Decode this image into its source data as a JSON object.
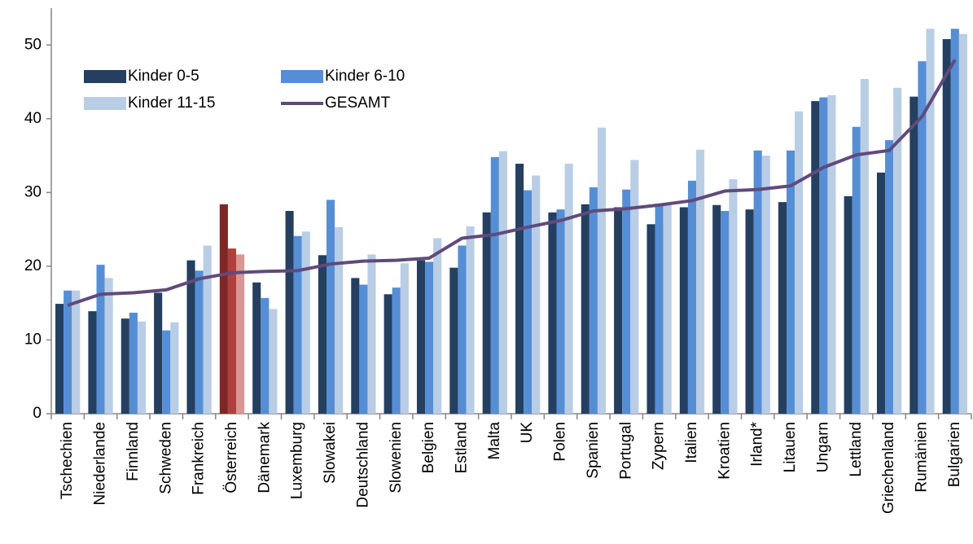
{
  "chart_data": {
    "type": "bar",
    "categories": [
      "Tschechien",
      "Niederlande",
      "Finnland",
      "Schweden",
      "Frankreich",
      "Österreich",
      "Dänemark",
      "Luxemburg",
      "Slowakei",
      "Deutschland",
      "Slowenien",
      "Belgien",
      "Estland",
      "Malta",
      "UK",
      "Polen",
      "Spanien",
      "Portugal",
      "Zypern",
      "Italien",
      "Kroatien",
      "Irland*",
      "Litauen",
      "Ungarn",
      "Lettland",
      "Griechenland",
      "Rumänien",
      "Bulgarien"
    ],
    "series": [
      {
        "name": "Kinder 0-5",
        "type": "bar",
        "color": "#243f60",
        "values": [
          14.9,
          13.9,
          12.9,
          16.4,
          20.8,
          28.4,
          17.8,
          27.5,
          21.5,
          18.4,
          16.2,
          20.8,
          19.8,
          27.3,
          33.9,
          27.3,
          28.4,
          28.0,
          25.7,
          28.0,
          28.3,
          27.7,
          28.7,
          42.4,
          29.5,
          32.7,
          43.0,
          50.8
        ]
      },
      {
        "name": "Kinder 6-10",
        "type": "bar",
        "color": "#558ed5",
        "values": [
          16.7,
          20.2,
          13.7,
          11.3,
          19.4,
          22.4,
          15.7,
          24.1,
          29.0,
          17.5,
          17.1,
          20.6,
          22.8,
          34.8,
          30.3,
          27.7,
          30.7,
          30.4,
          28.5,
          31.6,
          27.5,
          35.7,
          35.7,
          42.9,
          38.9,
          37.1,
          47.8,
          52.2
        ]
      },
      {
        "name": "Kinder 11-15",
        "type": "bar",
        "color": "#b9cde5",
        "values": [
          16.7,
          18.4,
          12.5,
          12.4,
          22.8,
          21.6,
          14.2,
          24.7,
          25.3,
          21.6,
          20.4,
          23.8,
          25.4,
          35.6,
          32.3,
          33.9,
          38.8,
          34.4,
          28.5,
          35.8,
          31.8,
          35.0,
          41.0,
          43.2,
          45.4,
          44.2,
          52.2,
          51.5
        ]
      },
      {
        "name": "GESAMT",
        "type": "line",
        "color": "#604a7b",
        "values": [
          14.7,
          16.2,
          16.4,
          16.8,
          18.3,
          19.1,
          19.3,
          19.4,
          20.3,
          20.7,
          20.8,
          21.1,
          23.8,
          24.3,
          25.3,
          26.2,
          27.5,
          27.8,
          28.3,
          28.9,
          30.2,
          30.4,
          30.9,
          33.4,
          35.1,
          35.7,
          40.3,
          48.0
        ]
      }
    ],
    "highlight_index": 5,
    "highlight_colors": [
      "#7f2626",
      "#b0403d",
      "#d99694"
    ],
    "ylim": [
      0,
      55
    ],
    "yticks": [
      0,
      10,
      20,
      30,
      40,
      50
    ]
  }
}
